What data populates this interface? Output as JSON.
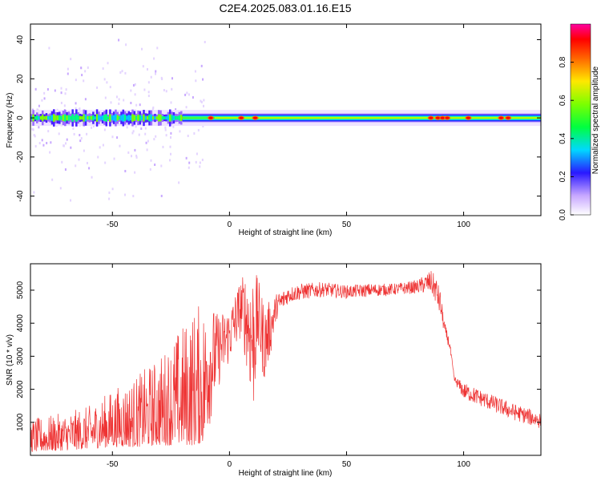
{
  "title": "C2E4.2025.083.01.16.E15",
  "colors": {
    "snr_line": "#ee3333",
    "frame": "#000000",
    "background": "#ffffff"
  },
  "chart_data": [
    {
      "type": "heatmap",
      "title": "C2E4.2025.083.01.16.E15",
      "xlabel": "Height of straight line (km)",
      "ylabel": "Frequency (Hz)",
      "xlim": [
        -85,
        133
      ],
      "ylim": [
        -50,
        48
      ],
      "xticks": [
        -50,
        0,
        50,
        100
      ],
      "yticks": [
        -40,
        -20,
        0,
        20,
        40
      ],
      "colorbar": {
        "label": "Normalized spectral amplitude",
        "range": [
          0,
          1
        ],
        "ticks": [
          "0.0",
          "0.2",
          "0.4",
          "0.6",
          "0.8"
        ]
      },
      "description_points": {
        "center_frequency_hz": 0,
        "bright_spots_x_km": [
          -8,
          5,
          11,
          86,
          89,
          91,
          93,
          102,
          116,
          119
        ],
        "noisy_region_x_km": [
          -85,
          -20
        ],
        "smooth_band_x_km": [
          -20,
          133
        ]
      }
    },
    {
      "type": "line",
      "xlabel": "Height of straight line (km)",
      "ylabel": "SNR (10 * v/v)",
      "xlim": [
        -85,
        133
      ],
      "ylim": [
        0,
        5800
      ],
      "xticks": [
        -50,
        0,
        50,
        100
      ],
      "yticks": [
        1000,
        2000,
        3000,
        4000,
        5000
      ],
      "envelope": {
        "x": [
          -85,
          -70,
          -60,
          -50,
          -40,
          -30,
          -20,
          -15,
          -10,
          -5,
          0,
          5,
          8,
          10,
          12,
          15,
          18,
          20,
          25,
          30,
          40,
          50,
          60,
          70,
          80,
          86,
          88,
          90,
          92,
          94,
          96,
          100,
          110,
          120,
          133
        ],
        "low": [
          100,
          150,
          200,
          250,
          250,
          300,
          300,
          300,
          400,
          2000,
          2800,
          3600,
          2400,
          1000,
          3000,
          2200,
          3200,
          4100,
          4600,
          4700,
          4800,
          4750,
          4800,
          4850,
          4900,
          4900,
          4600,
          4200,
          3600,
          3200,
          2200,
          1700,
          1400,
          1100,
          800
        ],
        "high": [
          1100,
          1300,
          1500,
          2000,
          2400,
          3000,
          4000,
          4500,
          4800,
          4300,
          4500,
          5400,
          5600,
          5800,
          5400,
          4600,
          4700,
          4900,
          5100,
          5200,
          5250,
          5150,
          5200,
          5200,
          5300,
          5600,
          5450,
          5000,
          4000,
          3500,
          2400,
          2200,
          1900,
          1600,
          1300
        ]
      }
    }
  ]
}
